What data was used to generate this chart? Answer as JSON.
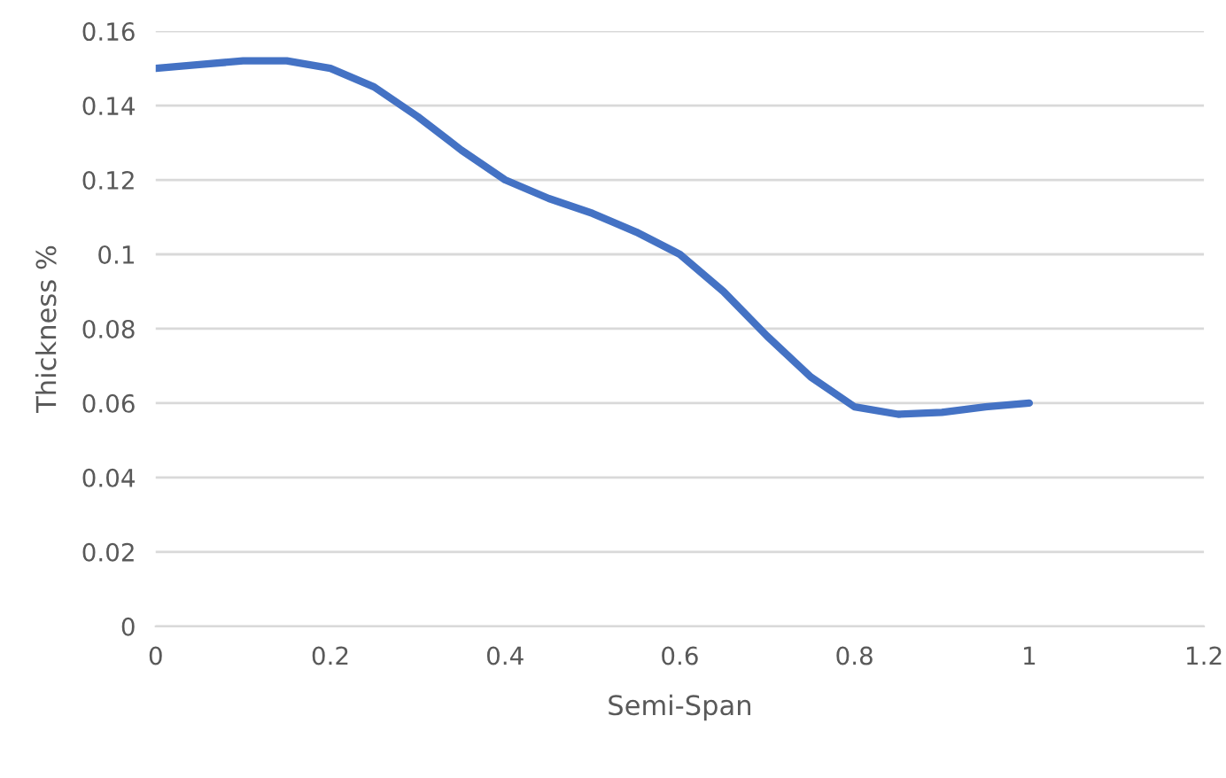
{
  "chart_data": {
    "type": "line",
    "xlabel": "Semi-Span",
    "ylabel": "Thickness %",
    "x": [
      0,
      0.05,
      0.1,
      0.15,
      0.2,
      0.25,
      0.3,
      0.35,
      0.4,
      0.45,
      0.5,
      0.55,
      0.6,
      0.65,
      0.7,
      0.75,
      0.8,
      0.85,
      0.9,
      0.95,
      1
    ],
    "series": [
      {
        "color": "#4472c4",
        "values": [
          0.15,
          0.151,
          0.152,
          0.152,
          0.15,
          0.145,
          0.137,
          0.128,
          0.12,
          0.115,
          0.111,
          0.106,
          0.1,
          0.09,
          0.078,
          0.067,
          0.059,
          0.057,
          0.0575,
          0.059,
          0.06
        ]
      }
    ],
    "xlim": [
      0,
      1.2
    ],
    "xticks": [
      0,
      0.2,
      0.4,
      0.6,
      0.8,
      1,
      1.2
    ],
    "ylim": [
      0,
      0.16
    ],
    "yticks": [
      0,
      0.02,
      0.04,
      0.06,
      0.08,
      0.1,
      0.12,
      0.14,
      0.16
    ],
    "grid": "y",
    "marker": "none",
    "line_style": "solid"
  }
}
